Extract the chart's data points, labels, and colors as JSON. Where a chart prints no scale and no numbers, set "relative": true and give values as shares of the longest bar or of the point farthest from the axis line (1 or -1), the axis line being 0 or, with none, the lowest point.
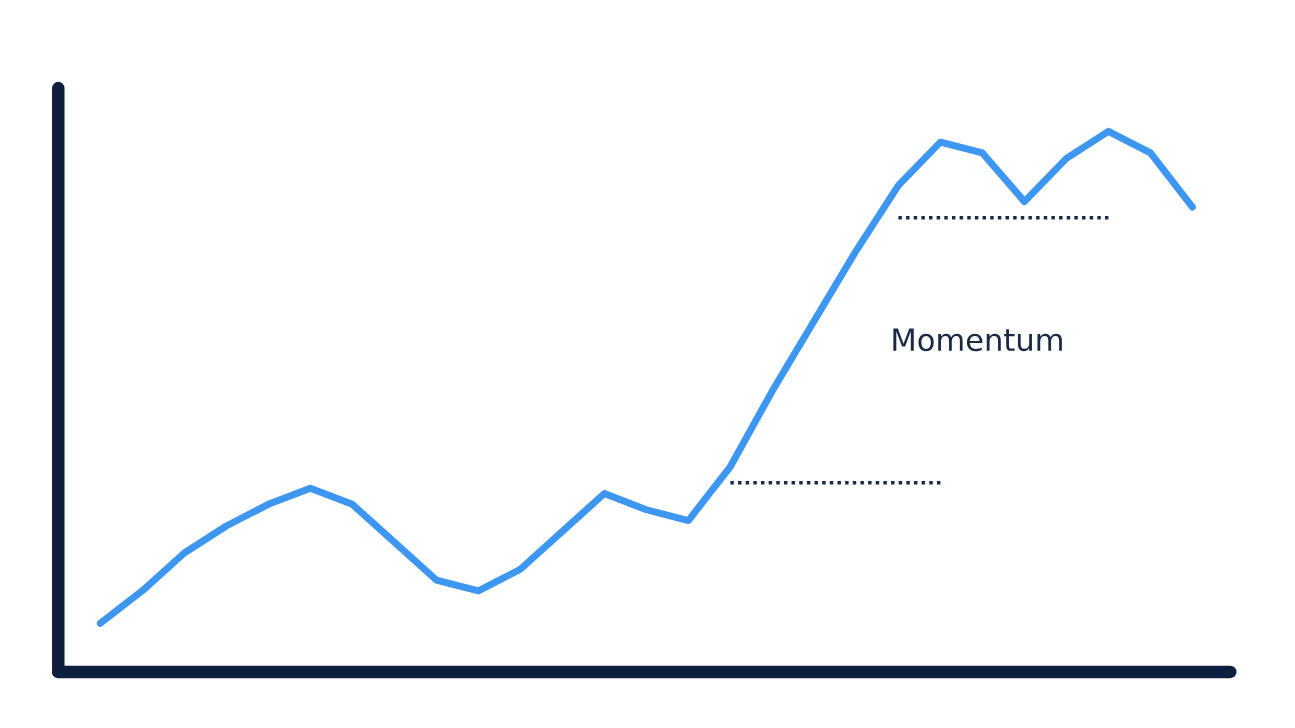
{
  "chart_data": {
    "type": "line",
    "relative": true,
    "categories": [
      null,
      null,
      null,
      null,
      null,
      null,
      null,
      null,
      null,
      null,
      null,
      null,
      null,
      null,
      null,
      null,
      null,
      null,
      null,
      null,
      null,
      null,
      null,
      null,
      null,
      null,
      null
    ],
    "series": [
      {
        "color": "#3d97f0",
        "values": [
          0.09,
          0.15,
          0.22,
          0.27,
          0.31,
          0.34,
          0.31,
          0.24,
          0.17,
          0.15,
          0.19,
          0.26,
          0.33,
          0.3,
          0.28,
          0.38,
          0.52,
          0.65,
          0.78,
          0.9,
          0.98,
          0.96,
          0.87,
          0.95,
          1.0,
          0.96,
          0.86
        ]
      },
      {
        "color": "#1a2a44",
        "line_style": "dotted",
        "values": [
          null,
          null,
          null,
          null,
          null,
          null,
          null,
          null,
          null,
          null,
          null,
          null,
          null,
          null,
          null,
          0.35,
          0.35,
          0.35,
          0.35,
          0.35,
          0.35,
          null,
          null,
          null,
          null,
          null,
          null
        ]
      },
      {
        "color": "#1a2a44",
        "line_style": "dotted",
        "values": [
          null,
          null,
          null,
          null,
          null,
          null,
          null,
          null,
          null,
          null,
          null,
          null,
          null,
          null,
          null,
          null,
          null,
          null,
          null,
          0.84,
          0.84,
          0.84,
          0.84,
          0.84,
          0.84,
          null,
          null
        ]
      }
    ],
    "annotations": [
      "Momentum"
    ],
    "grid": false,
    "legend": false
  }
}
